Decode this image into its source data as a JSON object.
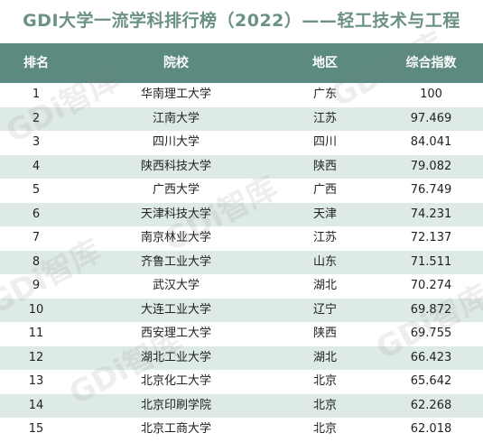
{
  "title": "GDI大学一流学科排行榜（2022）——轻工技术与工程",
  "headers": {
    "rank": "排名",
    "school": "院校",
    "region": "地区",
    "index": "综合指数"
  },
  "rows": [
    {
      "rank": "1",
      "school": "华南理工大学",
      "region": "广东",
      "index": "100"
    },
    {
      "rank": "2",
      "school": "江南大学",
      "region": "江苏",
      "index": "97.469"
    },
    {
      "rank": "3",
      "school": "四川大学",
      "region": "四川",
      "index": "84.041"
    },
    {
      "rank": "4",
      "school": "陕西科技大学",
      "region": "陕西",
      "index": "79.082"
    },
    {
      "rank": "5",
      "school": "广西大学",
      "region": "广西",
      "index": "76.749"
    },
    {
      "rank": "6",
      "school": "天津科技大学",
      "region": "天津",
      "index": "74.231"
    },
    {
      "rank": "7",
      "school": "南京林业大学",
      "region": "江苏",
      "index": "72.137"
    },
    {
      "rank": "8",
      "school": "齐鲁工业大学",
      "region": "山东",
      "index": "71.511"
    },
    {
      "rank": "9",
      "school": "武汉大学",
      "region": "湖北",
      "index": "70.274"
    },
    {
      "rank": "10",
      "school": "大连工业大学",
      "region": "辽宁",
      "index": "69.872"
    },
    {
      "rank": "11",
      "school": "西安理工大学",
      "region": "陕西",
      "index": "69.755"
    },
    {
      "rank": "12",
      "school": "湖北工业大学",
      "region": "湖北",
      "index": "66.423"
    },
    {
      "rank": "13",
      "school": "北京化工大学",
      "region": "北京",
      "index": "65.642"
    },
    {
      "rank": "14",
      "school": "北京印刷学院",
      "region": "北京",
      "index": "62.268"
    },
    {
      "rank": "15",
      "school": "北京工商大学",
      "region": "北京",
      "index": "62.018"
    }
  ],
  "watermark": "GDi智库",
  "colors": {
    "header_bg": "#5c8a80",
    "title": "#6b9187",
    "alt_row": "#deeae6"
  }
}
